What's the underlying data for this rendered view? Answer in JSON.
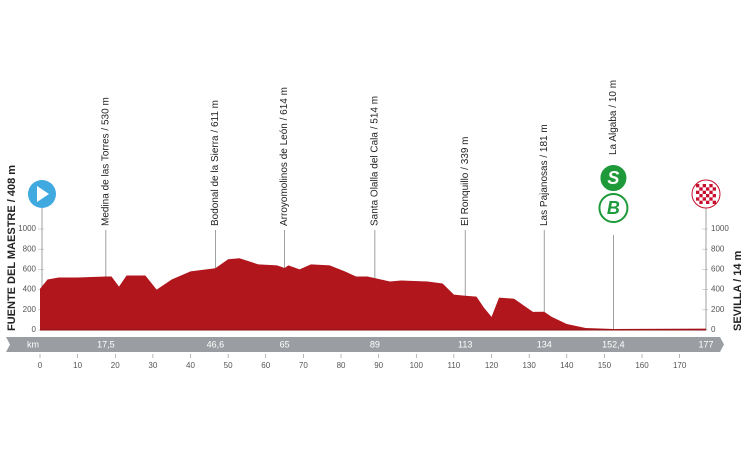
{
  "chart_data": {
    "type": "area",
    "color": "#b0161c",
    "x": [
      0,
      2,
      5,
      10,
      17.5,
      19,
      21,
      23,
      28,
      31,
      35,
      40,
      46.6,
      50,
      53,
      58,
      63,
      65,
      66,
      69,
      72,
      77,
      81,
      84,
      87,
      89,
      93,
      96,
      103,
      107,
      110,
      113,
      116,
      118,
      120,
      122,
      126,
      131,
      134,
      136,
      140,
      145,
      152.4,
      177
    ],
    "values": [
      408,
      500,
      520,
      520,
      530,
      530,
      430,
      540,
      540,
      400,
      500,
      580,
      611,
      700,
      710,
      650,
      640,
      614,
      640,
      600,
      650,
      640,
      580,
      530,
      530,
      514,
      480,
      490,
      480,
      460,
      350,
      339,
      330,
      220,
      130,
      320,
      310,
      180,
      181,
      130,
      60,
      20,
      10,
      14
    ],
    "xlim": [
      0,
      177
    ],
    "xticks": [
      0,
      10,
      20,
      30,
      40,
      50,
      60,
      70,
      80,
      90,
      100,
      110,
      120,
      130,
      140,
      150,
      160,
      170
    ],
    "ylim": [
      0,
      1000
    ],
    "yticks": [
      0,
      200,
      400,
      600,
      800,
      1000
    ],
    "x_unit": "km",
    "start": {
      "label": "FUENTE DEL MAESTRE / 408 m"
    },
    "finish": {
      "label": "SEVILLA / 14 m",
      "km": 177
    },
    "waypoints": [
      {
        "name": "Medina de las Torres / 530 m",
        "km": {
          "value": 17.5,
          "label": "17,5"
        }
      },
      {
        "name": "Bodonal de la Sierra / 611 m",
        "km": {
          "value": 46.6,
          "label": "46,6"
        }
      },
      {
        "name": "Arroyomolinos de León / 614 m",
        "km": 65
      },
      {
        "name": "Santa Olalla del Cala / 514 m",
        "km": 89
      },
      {
        "name": "El Ronquillo / 339 m",
        "km": 113
      },
      {
        "name": "Las Pajanosas / 181 m",
        "km": 134
      },
      {
        "name": "La Algaba / 10 m",
        "km": {
          "value": 152.4,
          "label": "152,4"
        },
        "icons": [
          "S",
          "B"
        ]
      }
    ]
  }
}
